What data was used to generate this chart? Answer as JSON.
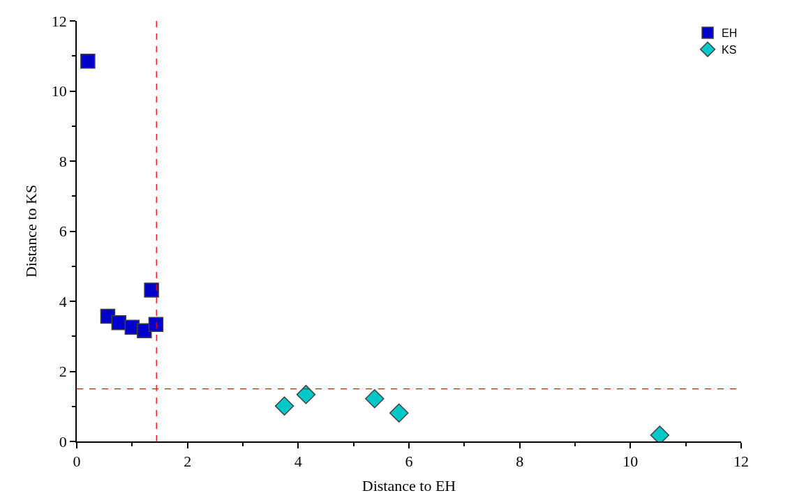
{
  "chart_data": {
    "type": "scatter",
    "xlabel": "Distance to EH",
    "ylabel": "Distance to KS",
    "series": [
      {
        "name": "EH",
        "color": "#0000cc",
        "marker": "square",
        "x": [
          0.2,
          0.56,
          0.76,
          1.0,
          1.22,
          1.43,
          1.35
        ],
        "values": [
          10.85,
          3.57,
          3.39,
          3.26,
          3.16,
          3.34,
          4.32
        ]
      },
      {
        "name": "KS",
        "color": "#00c8c8",
        "marker": "diamond",
        "x": [
          3.75,
          4.14,
          5.38,
          5.82,
          10.53
        ],
        "values": [
          1.01,
          1.34,
          1.22,
          0.81,
          0.18
        ]
      }
    ],
    "xlim": [
      0,
      12
    ],
    "ylim": [
      0,
      12
    ],
    "xticks": [
      0,
      2,
      4,
      6,
      8,
      10,
      12
    ],
    "yticks": [
      0,
      2,
      4,
      6,
      8,
      10,
      12
    ],
    "ref_lines": [
      {
        "axis": "x",
        "value": 1.44,
        "color": "#ff0000",
        "line_style": "dashed"
      },
      {
        "axis": "y",
        "value": 1.5,
        "color": "#ff0000",
        "line_style": "dashed"
      }
    ],
    "legend": "top right"
  }
}
